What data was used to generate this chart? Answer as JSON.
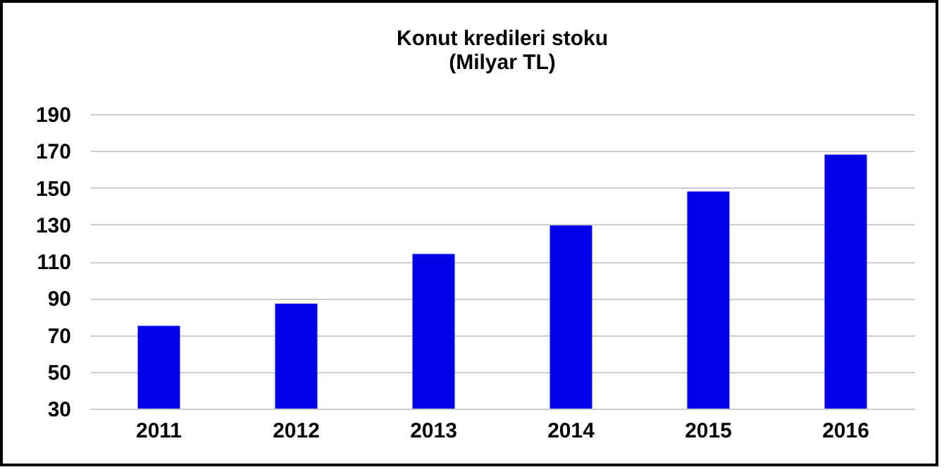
{
  "chart_data": {
    "type": "bar",
    "title": "Konut kredileri stoku",
    "subtitle": "(Milyar  TL)",
    "categories": [
      "2011",
      "2012",
      "2013",
      "2014",
      "2015",
      "2016"
    ],
    "values": [
      75,
      87,
      114,
      129.5,
      148,
      168
    ],
    "color": "#0000e6",
    "ylim": [
      30,
      190
    ],
    "yticks": [
      30,
      50,
      70,
      90,
      110,
      130,
      150,
      170,
      190
    ],
    "grid": "y"
  }
}
